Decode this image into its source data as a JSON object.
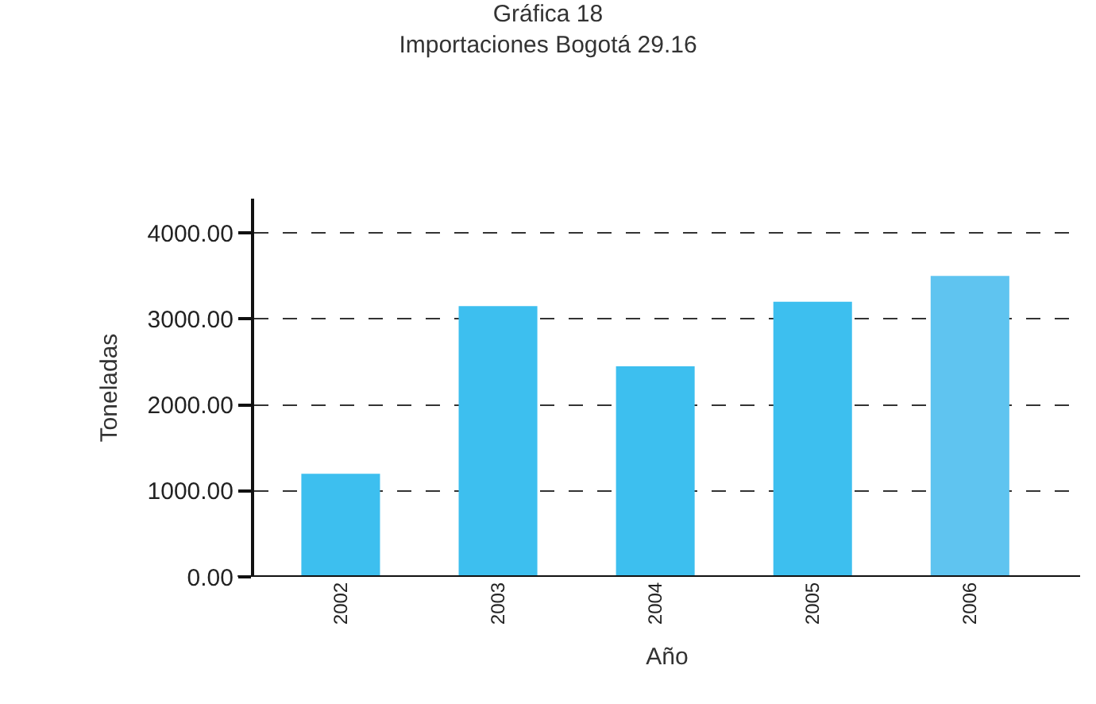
{
  "chart_data": {
    "type": "bar",
    "title": "Gráfica 18",
    "subtitle": "Importaciones Bogotá 29.16",
    "xlabel": "Año",
    "ylabel": "Toneladas",
    "categories": [
      "2002",
      "2003",
      "2004",
      "2005",
      "2006"
    ],
    "values": [
      1200,
      3150,
      2450,
      3200,
      3500
    ],
    "colors": [
      "#3dbfef",
      "#3dbfef",
      "#3dbfef",
      "#3dbfef",
      "#5fc4f0"
    ],
    "ylim": [
      0,
      4400
    ],
    "yticks": [
      {
        "value": 0,
        "label": "0.00"
      },
      {
        "value": 1000,
        "label": "1000.00"
      },
      {
        "value": 2000,
        "label": "2000.00"
      },
      {
        "value": 3000,
        "label": "3000.00"
      },
      {
        "value": 4000,
        "label": "4000.00"
      }
    ],
    "grid": "y"
  }
}
